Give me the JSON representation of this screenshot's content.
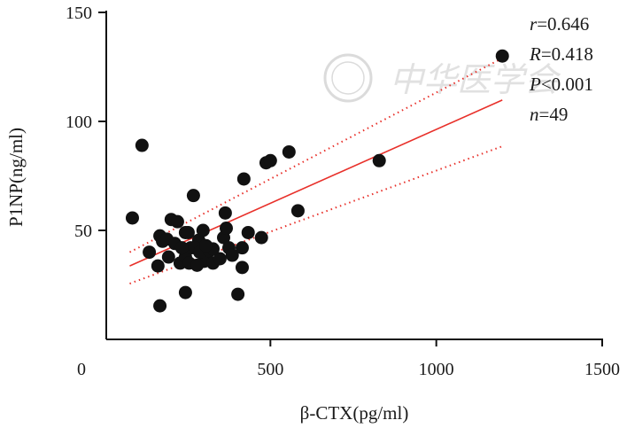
{
  "chart_data": {
    "type": "scatter",
    "xlabel": "β-CTX(pg/ml)",
    "ylabel": "P1NP(ng/ml)",
    "xlim": [
      0,
      1500
    ],
    "ylim": [
      0,
      150
    ],
    "xticks": [
      "0",
      "500",
      "1000",
      "1500"
    ],
    "yticks": [
      "50",
      "100",
      "150"
    ],
    "xtick_values": [
      0,
      500,
      1000,
      1500
    ],
    "ytick_values": [
      50,
      100,
      150
    ],
    "points": [
      [
        84,
        55.7
      ],
      [
        113,
        89
      ],
      [
        135,
        40
      ],
      [
        167,
        47.5
      ],
      [
        175,
        45
      ],
      [
        161,
        33.7
      ],
      [
        167,
        15.4
      ],
      [
        193,
        37.8
      ],
      [
        201,
        55
      ],
      [
        220,
        54
      ],
      [
        244,
        49
      ],
      [
        228,
        35
      ],
      [
        244,
        37.8
      ],
      [
        260,
        42
      ],
      [
        252,
        49
      ],
      [
        284,
        45.5
      ],
      [
        300,
        35.8
      ],
      [
        244,
        21.5
      ],
      [
        268,
        66
      ],
      [
        273,
        42
      ],
      [
        287,
        40
      ],
      [
        297,
        50
      ],
      [
        316,
        40.6
      ],
      [
        327,
        35
      ],
      [
        348,
        37
      ],
      [
        359,
        46.7
      ],
      [
        364,
        58
      ],
      [
        367,
        51
      ],
      [
        375,
        42
      ],
      [
        385,
        38.6
      ],
      [
        402,
        20.7
      ],
      [
        415,
        33
      ],
      [
        415,
        42
      ],
      [
        420,
        73.6
      ],
      [
        433,
        49
      ],
      [
        473,
        46.7
      ],
      [
        487,
        81
      ],
      [
        500,
        82
      ],
      [
        556,
        86
      ],
      [
        583,
        59
      ],
      [
        828,
        82
      ],
      [
        1199,
        130
      ],
      [
        188,
        46
      ],
      [
        212,
        44
      ],
      [
        255,
        35
      ],
      [
        233,
        42
      ],
      [
        279,
        34
      ],
      [
        327,
        41.5
      ],
      [
        306,
        43
      ]
    ],
    "fit_line": {
      "x": [
        76,
        1199
      ],
      "y": [
        33.7,
        109.8
      ]
    },
    "ci_upper": {
      "x": [
        76,
        1199
      ],
      "y": [
        40,
        129
      ]
    },
    "ci_lower": {
      "x": [
        76,
        1199
      ],
      "y": [
        25.6,
        88.6
      ]
    },
    "annotations": [
      {
        "var": "r",
        "text": "=0.646"
      },
      {
        "var": "R",
        "text": "=0.418"
      },
      {
        "var": "P",
        "text": "<0.001"
      },
      {
        "var": "n",
        "text": "=49"
      }
    ],
    "colors": {
      "points": "#111111",
      "fit": "#e8302a"
    },
    "watermark": "中华医学会"
  }
}
